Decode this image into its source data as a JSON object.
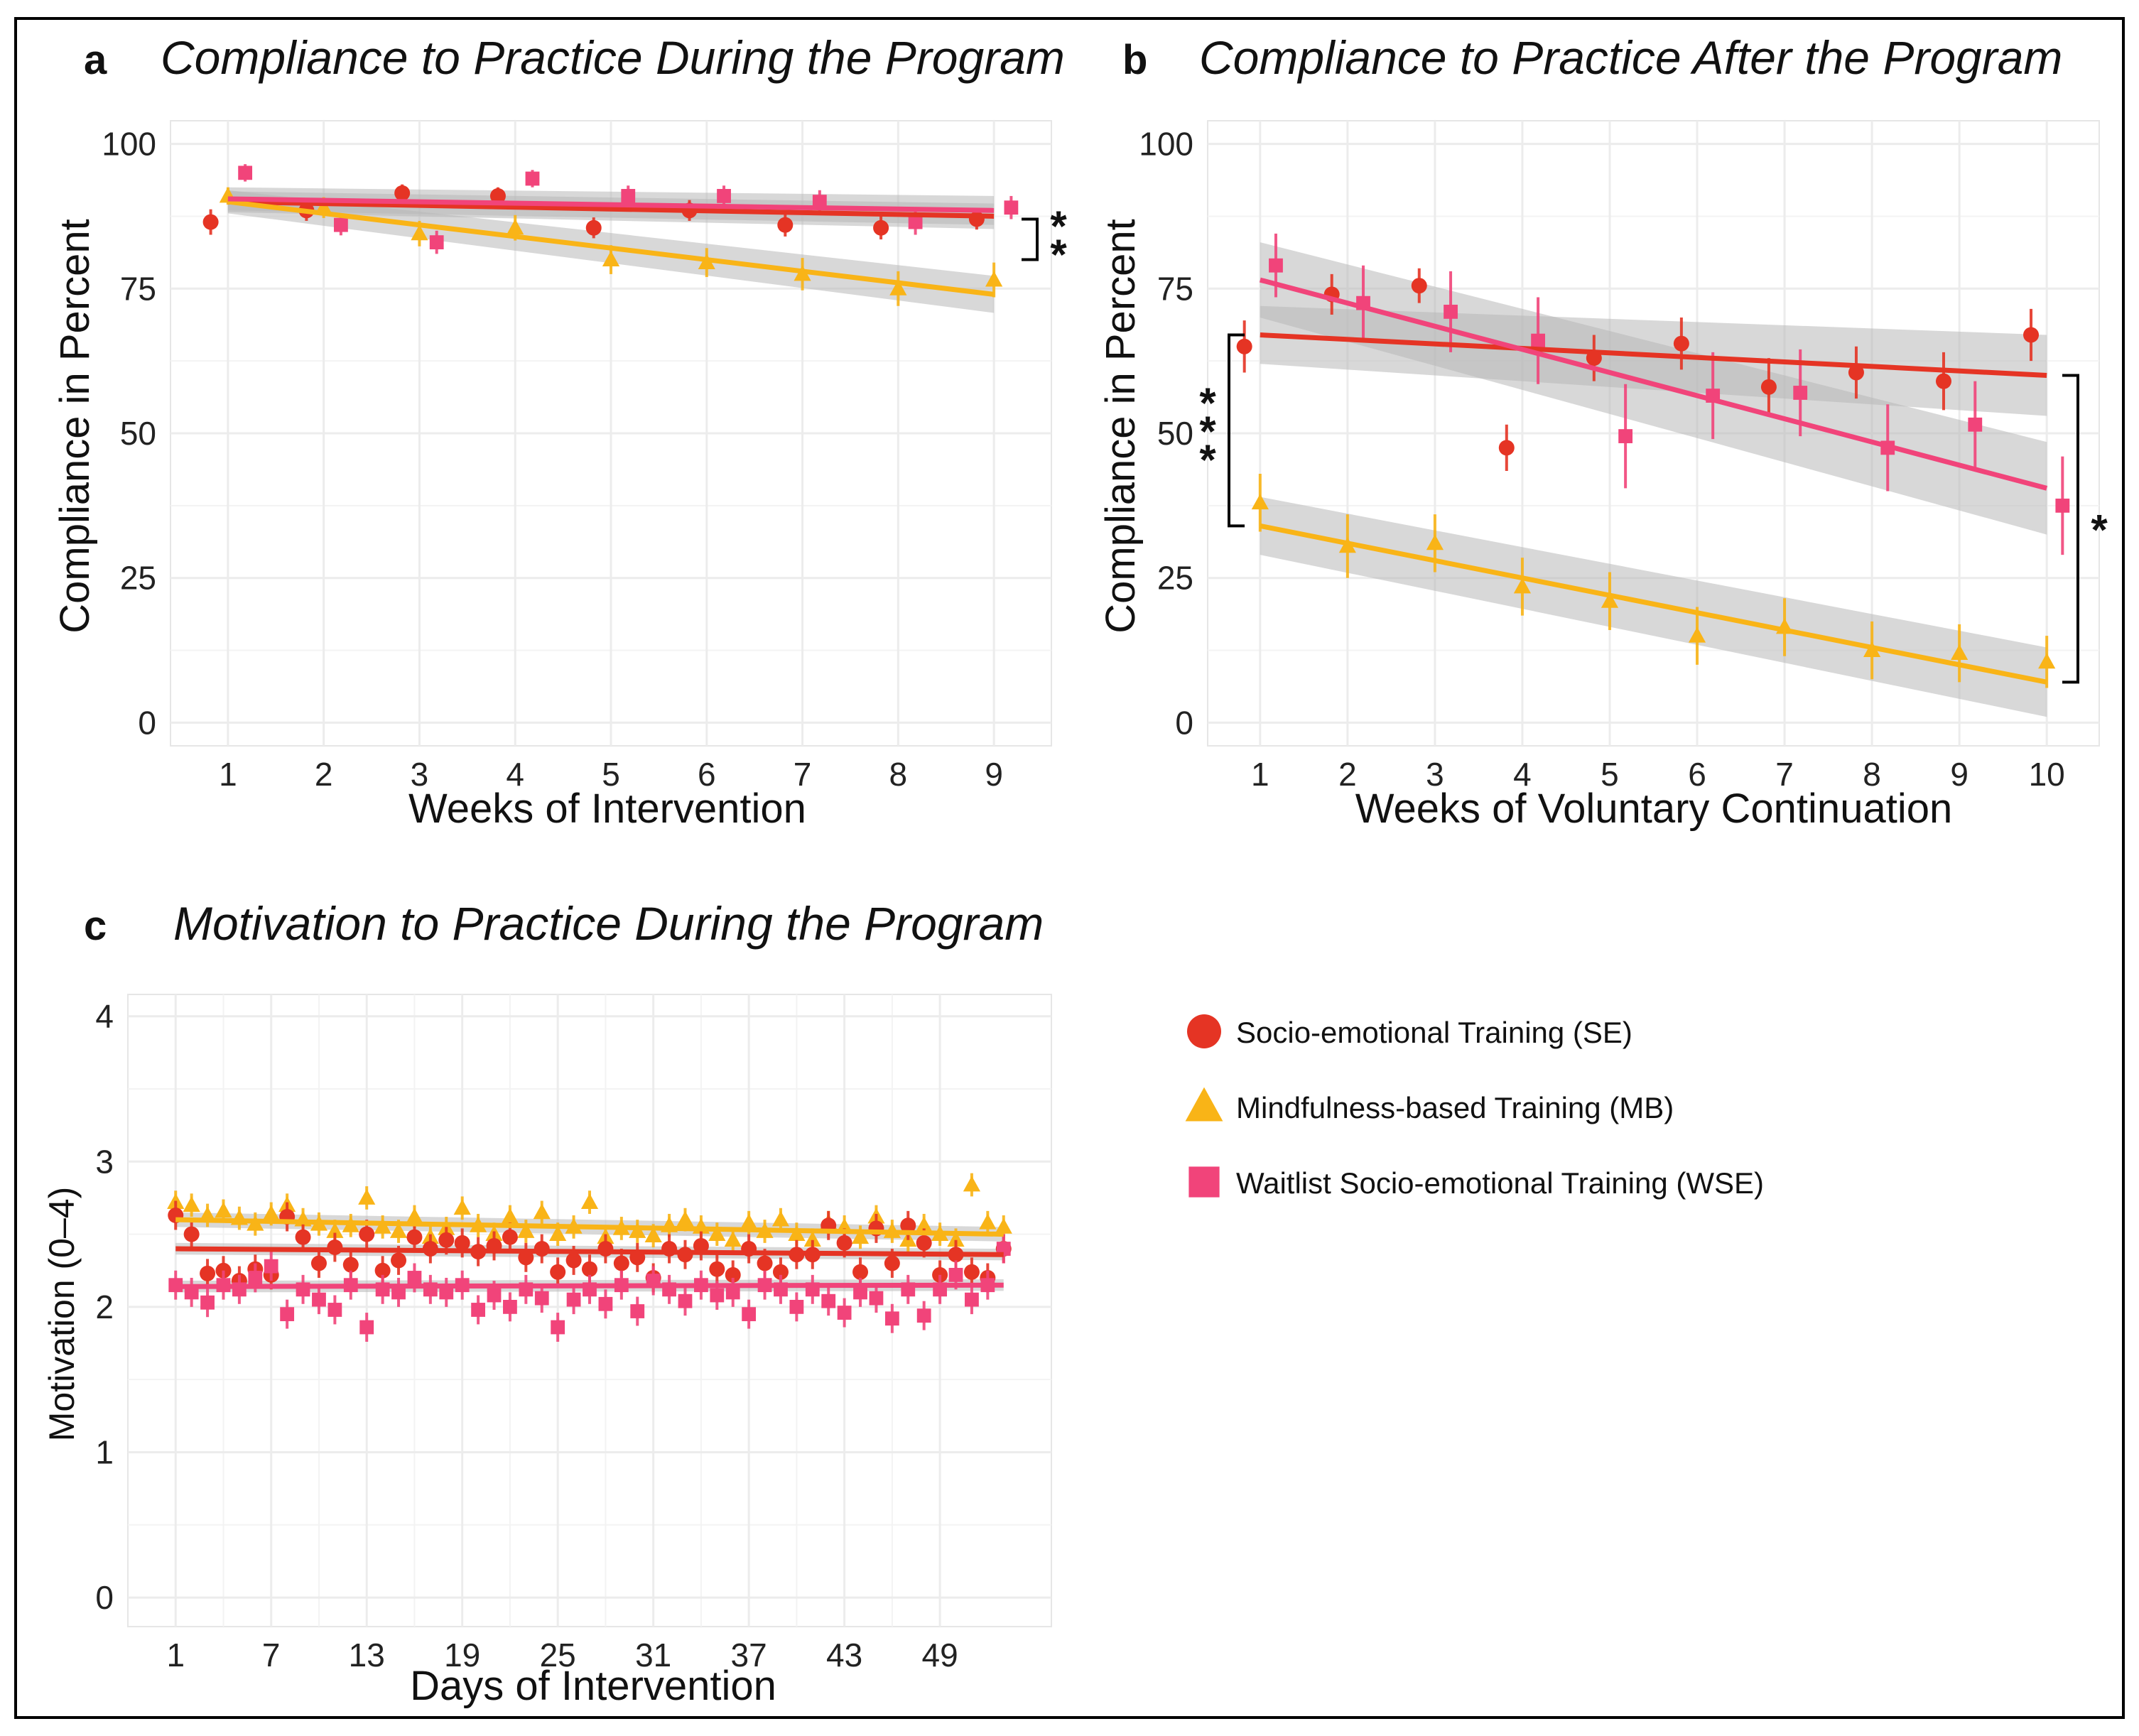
{
  "colors": {
    "SE": "#e53424",
    "MB": "#f9b417",
    "WSE": "#f1447a",
    "band": "#b8b8b8",
    "grid": "#ececec"
  },
  "legend": [
    {
      "key": "SE",
      "label": "Socio-emotional Training (SE)",
      "shape": "circle"
    },
    {
      "key": "MB",
      "label": "Mindfulness-based Training (MB)",
      "shape": "triangle"
    },
    {
      "key": "WSE",
      "label": "Waitlist Socio-emotional Training (WSE)",
      "shape": "square"
    }
  ],
  "chart_data": [
    {
      "id": "a",
      "letter": "a",
      "type": "scatter",
      "title": "Compliance to Practice During the Program",
      "xlabel": "Weeks of Intervention",
      "ylabel": "Compliance in Percent",
      "xlim": [
        0.4,
        9.6
      ],
      "ylim": [
        -4,
        104
      ],
      "xticks": [
        1,
        2,
        3,
        4,
        5,
        6,
        7,
        8,
        9
      ],
      "yticks": [
        0,
        25,
        50,
        75,
        100
      ],
      "series": [
        {
          "key": "SE",
          "name": "Socio-emotional Training (SE)",
          "x": [
            1,
            2,
            3,
            4,
            5,
            6,
            7,
            8,
            9
          ],
          "y": [
            86.5,
            88.5,
            91.5,
            91.0,
            85.5,
            88.5,
            86.0,
            85.5,
            87.0
          ],
          "err": [
            2.2,
            1.8,
            1.5,
            1.5,
            1.8,
            1.8,
            2.0,
            2.0,
            1.8
          ],
          "fit": [
            90.0,
            87.5
          ],
          "band": [
            1.8,
            2.2
          ]
        },
        {
          "key": "MB",
          "name": "Mindfulness-based Training (MB)",
          "x": [
            1,
            2,
            3,
            4,
            5,
            6,
            7,
            8,
            9
          ],
          "y": [
            91.0,
            89.0,
            84.5,
            85.5,
            80.0,
            79.5,
            77.5,
            75.0,
            76.5
          ],
          "err": [
            1.5,
            1.8,
            2.2,
            2.2,
            2.5,
            2.5,
            2.8,
            3.0,
            3.0
          ],
          "fit": [
            90.0,
            74.0
          ],
          "band": [
            2.0,
            3.2
          ]
        },
        {
          "key": "WSE",
          "name": "Waitlist Socio-emotional Training (WSE)",
          "x": [
            1,
            2,
            3,
            4,
            5,
            6,
            7,
            8,
            9
          ],
          "y": [
            95.0,
            86.0,
            83.0,
            94.0,
            91.0,
            91.0,
            90.0,
            86.5,
            89.0
          ],
          "err": [
            1.5,
            1.8,
            2.0,
            1.5,
            1.8,
            1.8,
            2.0,
            2.2,
            2.0
          ],
          "fit": [
            90.5,
            88.5
          ],
          "band": [
            2.0,
            2.5
          ]
        }
      ],
      "brackets": [
        {
          "y1": 87.0,
          "y2": 80.0,
          "side": "right",
          "label": "**"
        }
      ]
    },
    {
      "id": "b",
      "letter": "b",
      "type": "scatter",
      "title": "Compliance to Practice After the Program",
      "xlabel": "Weeks of Voluntary Continuation",
      "ylabel": "Compliance in Percent",
      "xlim": [
        0.4,
        10.6
      ],
      "ylim": [
        -4,
        104
      ],
      "xticks": [
        1,
        2,
        3,
        4,
        5,
        6,
        7,
        8,
        9,
        10
      ],
      "yticks": [
        0,
        25,
        50,
        75,
        100
      ],
      "series": [
        {
          "key": "SE",
          "name": "Socio-emotional Training (SE)",
          "x": [
            1,
            2,
            3,
            4,
            5,
            6,
            7,
            8,
            9,
            10
          ],
          "y": [
            65.0,
            74.0,
            75.5,
            47.5,
            63.0,
            65.5,
            58.0,
            60.5,
            59.0,
            67.0
          ],
          "err": [
            4.5,
            3.5,
            3.0,
            4.0,
            4.0,
            4.5,
            5.0,
            4.5,
            5.0,
            4.5
          ],
          "fit": [
            67.0,
            60.0
          ],
          "band": [
            5.0,
            7.0
          ]
        },
        {
          "key": "MB",
          "name": "Mindfulness-based Training (MB)",
          "x": [
            1,
            2,
            3,
            4,
            5,
            6,
            7,
            8,
            9,
            10
          ],
          "y": [
            38.0,
            30.5,
            31.0,
            23.5,
            21.0,
            15.0,
            16.5,
            12.5,
            12.0,
            10.5
          ],
          "err": [
            5.0,
            5.5,
            5.0,
            5.0,
            5.0,
            5.0,
            5.0,
            5.0,
            5.0,
            4.5
          ],
          "fit": [
            34.0,
            7.0
          ],
          "band": [
            5.0,
            6.0
          ]
        },
        {
          "key": "WSE",
          "name": "Waitlist Socio-emotional Training (WSE)",
          "x": [
            1,
            2,
            3,
            4,
            5,
            6,
            7,
            8,
            9,
            10
          ],
          "y": [
            79.0,
            72.5,
            71.0,
            66.0,
            49.5,
            56.5,
            57.0,
            47.5,
            51.5,
            37.5
          ],
          "err": [
            5.5,
            6.5,
            7.0,
            7.5,
            9.0,
            7.5,
            7.5,
            7.5,
            7.5,
            8.5
          ],
          "fit": [
            76.5,
            40.5
          ],
          "band": [
            6.5,
            8.0
          ]
        }
      ],
      "brackets": [
        {
          "y1": 67.0,
          "y2": 34.0,
          "side": "left",
          "label": "***"
        },
        {
          "y1": 60.0,
          "y2": 7.0,
          "side": "right",
          "label": "*"
        }
      ]
    },
    {
      "id": "c",
      "letter": "c",
      "type": "scatter",
      "title": "Motivation to Practice During the Program",
      "xlabel": "Days of Intervention",
      "ylabel": "Motivation (0–4)",
      "xlim": [
        -2,
        56
      ],
      "ylim": [
        -0.2,
        4.15
      ],
      "xticks": [
        1,
        7,
        13,
        19,
        25,
        31,
        37,
        43,
        49
      ],
      "yticks": [
        0,
        1,
        2,
        3,
        4
      ],
      "series": [
        {
          "key": "MB",
          "name": "Mindfulness-based Training (MB)",
          "x_start": 1,
          "y": [
            2.72,
            2.7,
            2.63,
            2.66,
            2.61,
            2.57,
            2.64,
            2.7,
            2.6,
            2.57,
            2.52,
            2.56,
            2.75,
            2.55,
            2.52,
            2.62,
            2.48,
            2.54,
            2.68,
            2.56,
            2.5,
            2.62,
            2.52,
            2.65,
            2.5,
            2.55,
            2.72,
            2.48,
            2.54,
            2.52,
            2.49,
            2.56,
            2.6,
            2.55,
            2.5,
            2.46,
            2.58,
            2.52,
            2.6,
            2.5,
            2.46,
            2.58,
            2.55,
            2.48,
            2.62,
            2.52,
            2.46,
            2.56,
            2.5,
            2.46,
            2.84,
            2.58,
            2.55
          ],
          "err": 0.08,
          "fit": [
            2.6,
            2.5
          ],
          "band": [
            0.05,
            0.05
          ]
        },
        {
          "key": "SE",
          "name": "Socio-emotional Training (SE)",
          "x_start": 1,
          "y": [
            2.63,
            2.5,
            2.23,
            2.25,
            2.18,
            2.26,
            2.22,
            2.62,
            2.48,
            2.3,
            2.41,
            2.29,
            2.5,
            2.25,
            2.32,
            2.48,
            2.4,
            2.46,
            2.44,
            2.38,
            2.42,
            2.48,
            2.34,
            2.4,
            2.24,
            2.32,
            2.26,
            2.4,
            2.3,
            2.34,
            2.2,
            2.4,
            2.36,
            2.42,
            2.26,
            2.22,
            2.4,
            2.3,
            2.24,
            2.36,
            2.36,
            2.56,
            2.44,
            2.24,
            2.54,
            2.3,
            2.56,
            2.44,
            2.22,
            2.36,
            2.24,
            2.2,
            2.4
          ],
          "err": 0.1,
          "fit": [
            2.4,
            2.36
          ],
          "band": [
            0.04,
            0.04
          ]
        },
        {
          "key": "WSE",
          "name": "Waitlist Socio-emotional Training (WSE)",
          "x_start": 1,
          "y": [
            2.15,
            2.1,
            2.03,
            2.15,
            2.12,
            2.2,
            2.28,
            1.95,
            2.12,
            2.05,
            1.98,
            2.15,
            1.86,
            2.12,
            2.1,
            2.2,
            2.12,
            2.1,
            2.15,
            1.98,
            2.08,
            2.0,
            2.12,
            2.06,
            1.86,
            2.05,
            2.12,
            2.02,
            2.15,
            1.97,
            2.18,
            2.12,
            2.04,
            2.15,
            2.08,
            2.1,
            1.95,
            2.15,
            2.12,
            2.0,
            2.12,
            2.04,
            1.96,
            2.1,
            2.06,
            1.92,
            2.12,
            1.94,
            2.12,
            2.22,
            2.05,
            2.15,
            2.4
          ],
          "err": 0.1,
          "fit": [
            2.14,
            2.15
          ],
          "band": [
            0.04,
            0.04
          ]
        }
      ]
    }
  ]
}
